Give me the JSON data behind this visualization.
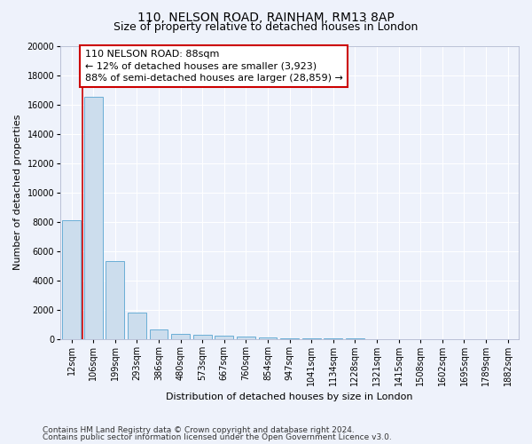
{
  "title_line1": "110, NELSON ROAD, RAINHAM, RM13 8AP",
  "title_line2": "Size of property relative to detached houses in London",
  "xlabel": "Distribution of detached houses by size in London",
  "ylabel": "Number of detached properties",
  "categories": [
    "12sqm",
    "106sqm",
    "199sqm",
    "293sqm",
    "386sqm",
    "480sqm",
    "573sqm",
    "667sqm",
    "760sqm",
    "854sqm",
    "947sqm",
    "1041sqm",
    "1134sqm",
    "1228sqm",
    "1321sqm",
    "1415sqm",
    "1508sqm",
    "1602sqm",
    "1695sqm",
    "1789sqm",
    "1882sqm"
  ],
  "values": [
    8100,
    16500,
    5300,
    1800,
    650,
    350,
    280,
    200,
    150,
    80,
    50,
    30,
    20,
    15,
    10,
    8,
    5,
    5,
    5,
    5,
    5
  ],
  "bar_color": "#ccdded",
  "bar_edge_color": "#6aaed6",
  "bar_width": 0.85,
  "ylim": [
    0,
    20000
  ],
  "yticks": [
    0,
    2000,
    4000,
    6000,
    8000,
    10000,
    12000,
    14000,
    16000,
    18000,
    20000
  ],
  "annotation_box_text": "110 NELSON ROAD: 88sqm\n← 12% of detached houses are smaller (3,923)\n88% of semi-detached houses are larger (28,859) →",
  "annotation_box_color": "#ffffff",
  "annotation_box_edge_color": "#cc0000",
  "vline_color": "#cc0000",
  "vline_x": 0.5,
  "background_color": "#eef2fb",
  "grid_color": "#ffffff",
  "footer_line1": "Contains HM Land Registry data © Crown copyright and database right 2024.",
  "footer_line2": "Contains public sector information licensed under the Open Government Licence v3.0.",
  "title_fontsize": 10,
  "subtitle_fontsize": 9,
  "axis_label_fontsize": 8,
  "tick_fontsize": 7,
  "annotation_fontsize": 8,
  "footer_fontsize": 6.5,
  "ylabel_fontsize": 8
}
